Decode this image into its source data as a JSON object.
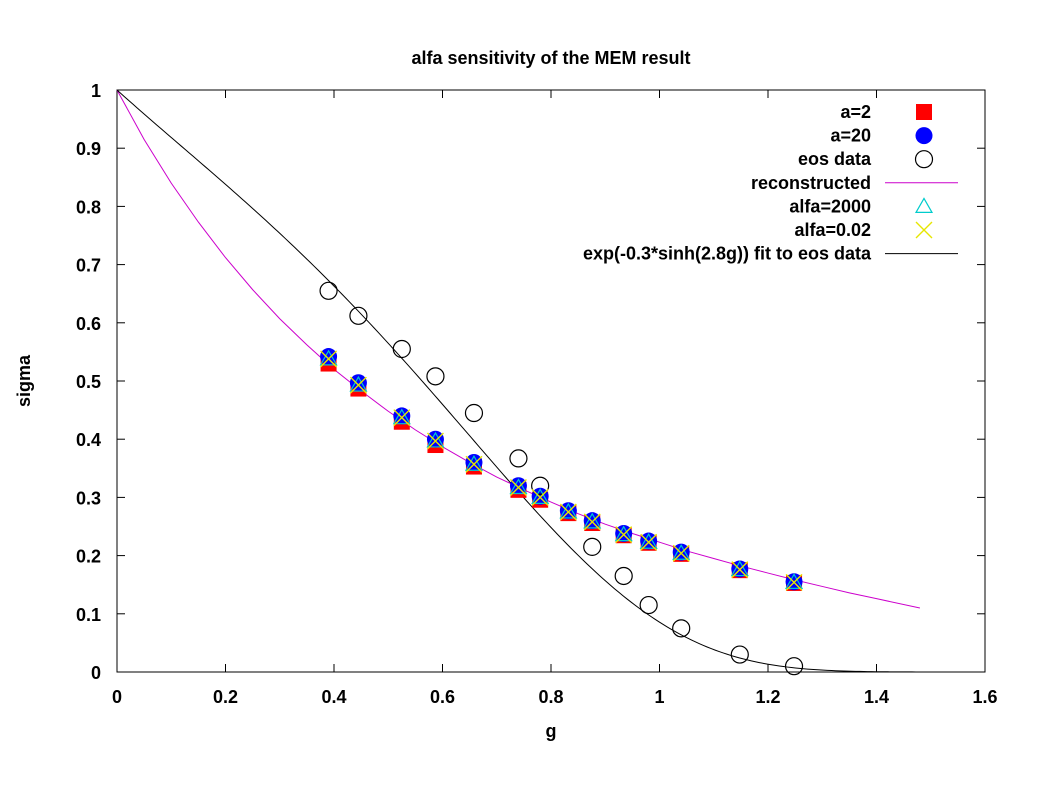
{
  "chart_data": {
    "type": "scatter",
    "title": "alfa sensitivity of the MEM result",
    "xlabel": "g",
    "ylabel": "sigma",
    "xlim": [
      0,
      1.6
    ],
    "ylim": [
      0,
      1
    ],
    "xticks": [
      "0",
      "0.2",
      "0.4",
      "0.6",
      "0.8",
      "1",
      "1.2",
      "1.4",
      "1.6"
    ],
    "yticks": [
      "0",
      "0.1",
      "0.2",
      "0.3",
      "0.4",
      "0.5",
      "0.6",
      "0.7",
      "0.8",
      "0.9",
      "1"
    ],
    "grid": false,
    "legend_position": "top-right",
    "series": [
      {
        "name": "a=2",
        "marker": "filled-square",
        "color": "#ff0000",
        "x": [
          0.39,
          0.445,
          0.525,
          0.587,
          0.658,
          0.74,
          0.78,
          0.832,
          0.876,
          0.934,
          0.98,
          1.04,
          1.148,
          1.248
        ],
        "y": [
          0.53,
          0.487,
          0.43,
          0.39,
          0.353,
          0.313,
          0.296,
          0.273,
          0.256,
          0.235,
          0.222,
          0.203,
          0.175,
          0.153
        ]
      },
      {
        "name": "a=20",
        "marker": "filled-circle",
        "color": "#0000ff",
        "x": [
          0.39,
          0.445,
          0.525,
          0.587,
          0.658,
          0.74,
          0.78,
          0.832,
          0.876,
          0.934,
          0.98,
          1.04,
          1.148,
          1.248
        ],
        "y": [
          0.542,
          0.497,
          0.44,
          0.4,
          0.36,
          0.32,
          0.302,
          0.277,
          0.26,
          0.238,
          0.225,
          0.206,
          0.177,
          0.155
        ]
      },
      {
        "name": "eos data",
        "marker": "open-circle",
        "color": "#000000",
        "x": [
          0.39,
          0.445,
          0.525,
          0.587,
          0.658,
          0.74,
          0.78,
          0.876,
          0.934,
          0.98,
          1.04,
          1.148,
          1.248
        ],
        "y": [
          0.655,
          0.612,
          0.555,
          0.508,
          0.445,
          0.367,
          0.32,
          0.215,
          0.165,
          0.115,
          0.075,
          0.03,
          0.01
        ]
      },
      {
        "name": "reconstructed",
        "marker": "line",
        "color": "#cc00cc",
        "x": [
          0.0,
          0.05,
          0.1,
          0.15,
          0.2,
          0.25,
          0.3,
          0.35,
          0.4,
          0.45,
          0.5,
          0.55,
          0.6,
          0.65,
          0.7,
          0.75,
          0.8,
          0.85,
          0.9,
          0.95,
          1.0,
          1.05,
          1.1,
          1.15,
          1.2,
          1.25,
          1.3,
          1.35,
          1.4,
          1.48
        ],
        "y": [
          1.0,
          0.915,
          0.84,
          0.773,
          0.712,
          0.657,
          0.607,
          0.562,
          0.52,
          0.483,
          0.448,
          0.416,
          0.387,
          0.36,
          0.335,
          0.313,
          0.292,
          0.272,
          0.254,
          0.238,
          0.223,
          0.208,
          0.195,
          0.182,
          0.17,
          0.158,
          0.147,
          0.136,
          0.126,
          0.11
        ]
      },
      {
        "name": "alfa=2000",
        "marker": "open-triangle",
        "color": "#00cccc",
        "x": [
          0.39,
          0.445,
          0.525,
          0.587,
          0.658,
          0.74,
          0.78,
          0.832,
          0.876,
          0.934,
          0.98,
          1.04,
          1.148,
          1.248
        ],
        "y": [
          0.538,
          0.493,
          0.437,
          0.397,
          0.357,
          0.317,
          0.3,
          0.275,
          0.258,
          0.236,
          0.223,
          0.204,
          0.176,
          0.154
        ]
      },
      {
        "name": "alfa=0.02",
        "marker": "cross",
        "color": "#e6e600",
        "x": [
          0.39,
          0.445,
          0.525,
          0.587,
          0.658,
          0.74,
          0.78,
          0.832,
          0.876,
          0.934,
          0.98,
          1.04,
          1.148,
          1.248
        ],
        "y": [
          0.538,
          0.493,
          0.437,
          0.397,
          0.357,
          0.317,
          0.3,
          0.275,
          0.258,
          0.236,
          0.223,
          0.204,
          0.176,
          0.154
        ]
      },
      {
        "name": "exp(-0.3*sinh(2.8g)) fit to eos data",
        "marker": "line",
        "color": "#000000",
        "function": "exp(-0.3*sinh(2.8g))",
        "x_range": [
          0,
          1.48
        ]
      }
    ]
  }
}
